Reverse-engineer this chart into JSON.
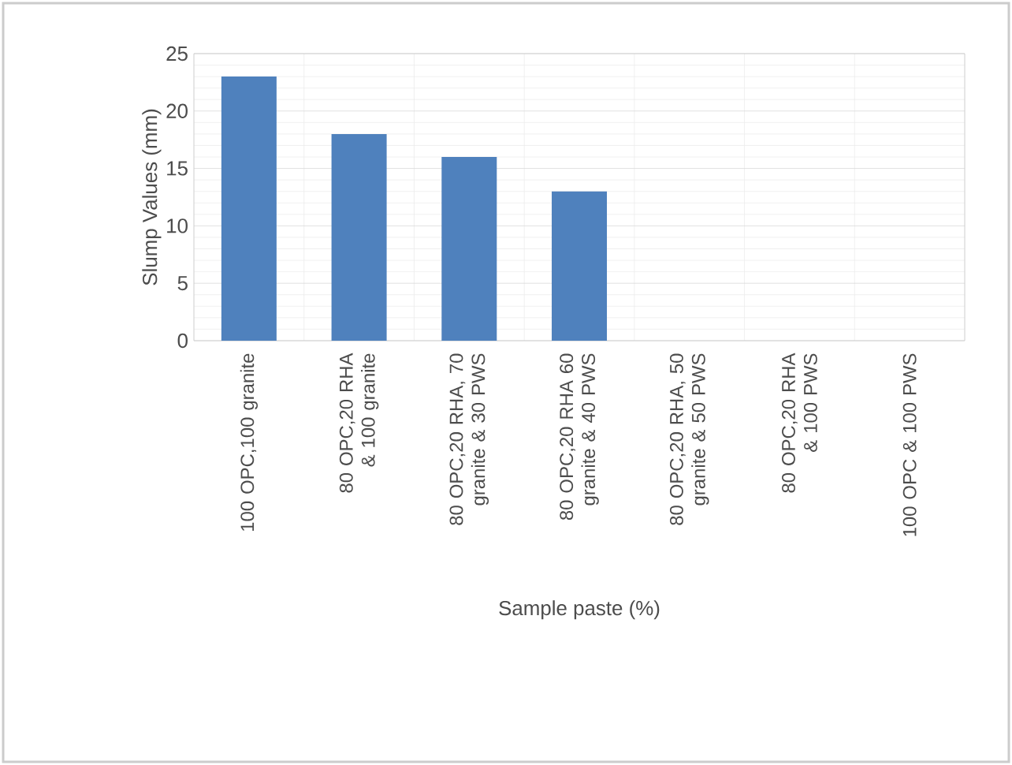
{
  "chart_data": {
    "type": "bar",
    "xlabel": "Sample paste (%)",
    "ylabel": "Slump Values (mm)",
    "categories": [
      "100 OPC,100 granite",
      "80 OPC,20 RHA & 100 granite",
      "80 OPC,20 RHA, 70 granite & 30 PWS",
      "80 OPC,20 RHA 60 granite & 40 PWS",
      "80 OPC,20 RHA, 50 granite & 50 PWS",
      "80 OPC,20 RHA & 100 PWS",
      "100 OPC & 100 PWS"
    ],
    "values": [
      23,
      18,
      16,
      13,
      0,
      0,
      0
    ],
    "color": "#4f81bd",
    "ylim": [
      0,
      25
    ],
    "yticks": [
      0,
      5,
      10,
      15,
      20,
      25
    ],
    "grid": true
  }
}
